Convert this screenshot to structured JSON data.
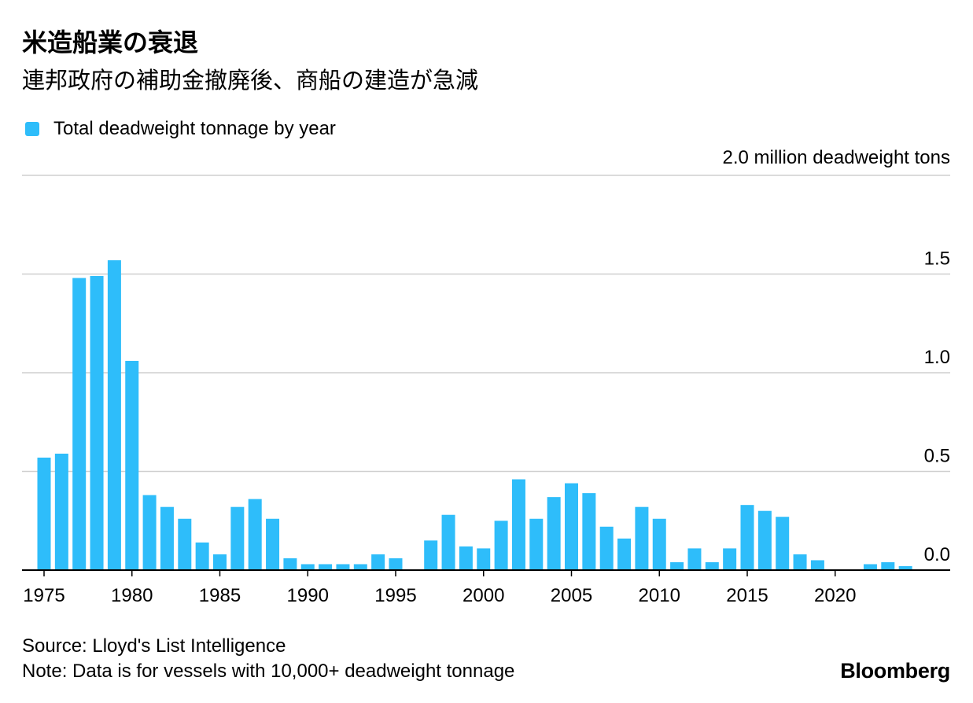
{
  "header": {
    "title": "米造船業の衰退",
    "subtitle": "連邦政府の補助金撤廃後、商船の建造が急減"
  },
  "legend": {
    "label": "Total deadweight tonnage by year",
    "color": "#2ebdfa"
  },
  "unit_label": "2.0 million deadweight tons",
  "footer": {
    "source": "Source: Lloyd's List Intelligence",
    "note": "Note: Data is for vessels with 10,000+ deadweight tonnage",
    "brand": "Bloomberg"
  },
  "chart_data": {
    "type": "bar",
    "title": "米造船業の衰退",
    "ylabel": "million deadweight tons",
    "ylim": [
      0,
      2.0
    ],
    "yticks": [
      {
        "value": 0.0,
        "label": "0.0"
      },
      {
        "value": 0.5,
        "label": "0.5"
      },
      {
        "value": 1.0,
        "label": "1.0"
      },
      {
        "value": 1.5,
        "label": "1.5"
      },
      {
        "value": 2.0,
        "label": "2.0"
      }
    ],
    "xticks": [
      {
        "year": 1975,
        "label": "1975"
      },
      {
        "year": 1980,
        "label": "1980"
      },
      {
        "year": 1985,
        "label": "1985"
      },
      {
        "year": 1990,
        "label": "1990"
      },
      {
        "year": 1995,
        "label": "1995"
      },
      {
        "year": 2000,
        "label": "2000"
      },
      {
        "year": 2005,
        "label": "2005"
      },
      {
        "year": 2010,
        "label": "2010"
      },
      {
        "year": 2015,
        "label": "2015"
      },
      {
        "year": 2020,
        "label": "2020"
      }
    ],
    "series": [
      {
        "name": "Total deadweight tonnage by year",
        "color": "#2ebdfa",
        "years": [
          1975,
          1976,
          1977,
          1978,
          1979,
          1980,
          1981,
          1982,
          1983,
          1984,
          1985,
          1986,
          1987,
          1988,
          1989,
          1990,
          1991,
          1992,
          1993,
          1994,
          1995,
          1996,
          1997,
          1998,
          1999,
          2000,
          2001,
          2002,
          2003,
          2004,
          2005,
          2006,
          2007,
          2008,
          2009,
          2010,
          2011,
          2012,
          2013,
          2014,
          2015,
          2016,
          2017,
          2018,
          2019,
          2020,
          2021,
          2022,
          2023,
          2024
        ],
        "values": [
          0.57,
          0.59,
          1.48,
          1.49,
          1.57,
          1.06,
          0.38,
          0.32,
          0.26,
          0.14,
          0.08,
          0.32,
          0.36,
          0.26,
          0.06,
          0.03,
          0.03,
          0.03,
          0.03,
          0.08,
          0.06,
          0.0,
          0.15,
          0.28,
          0.12,
          0.11,
          0.25,
          0.46,
          0.26,
          0.37,
          0.44,
          0.39,
          0.22,
          0.16,
          0.32,
          0.26,
          0.04,
          0.11,
          0.04,
          0.11,
          0.33,
          0.3,
          0.27,
          0.08,
          0.05,
          0.0,
          0.0,
          0.03,
          0.04,
          0.02
        ]
      }
    ]
  }
}
